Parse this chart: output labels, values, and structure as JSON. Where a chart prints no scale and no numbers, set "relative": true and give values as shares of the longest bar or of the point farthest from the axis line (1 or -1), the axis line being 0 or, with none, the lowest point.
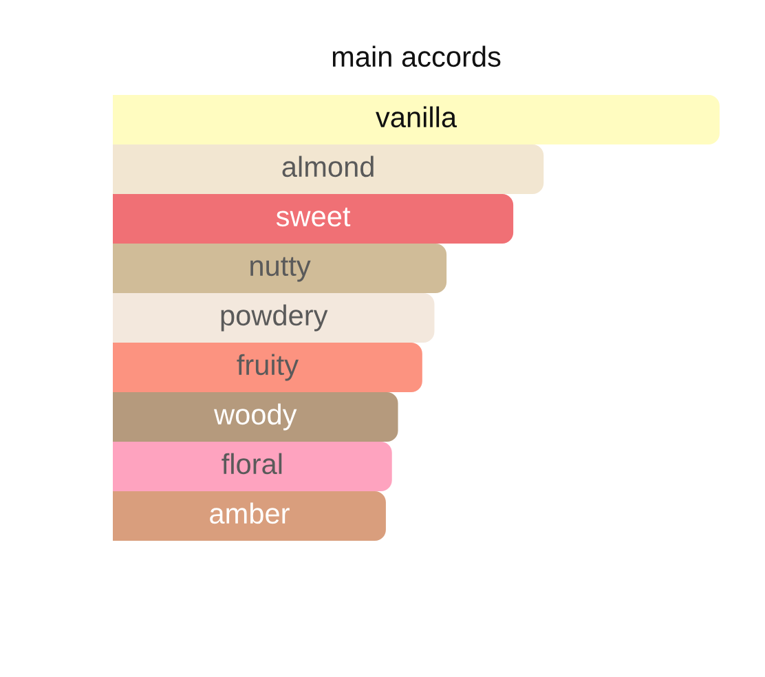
{
  "chart_data": {
    "type": "bar",
    "orientation": "horizontal",
    "relative": true,
    "title": "main accords",
    "categories": [
      "vanilla",
      "almond",
      "sweet",
      "nutty",
      "powdery",
      "fruity",
      "woody",
      "floral",
      "amber"
    ],
    "values": [
      1,
      0.71,
      0.66,
      0.55,
      0.53,
      0.51,
      0.47,
      0.46,
      0.45
    ],
    "colors": [
      "#fffcc0",
      "#f2e6d1",
      "#f07075",
      "#d0bc98",
      "#f3e8dd",
      "#fc9380",
      "#b59a7d",
      "#fea3bf",
      "#d99e7d"
    ]
  }
}
